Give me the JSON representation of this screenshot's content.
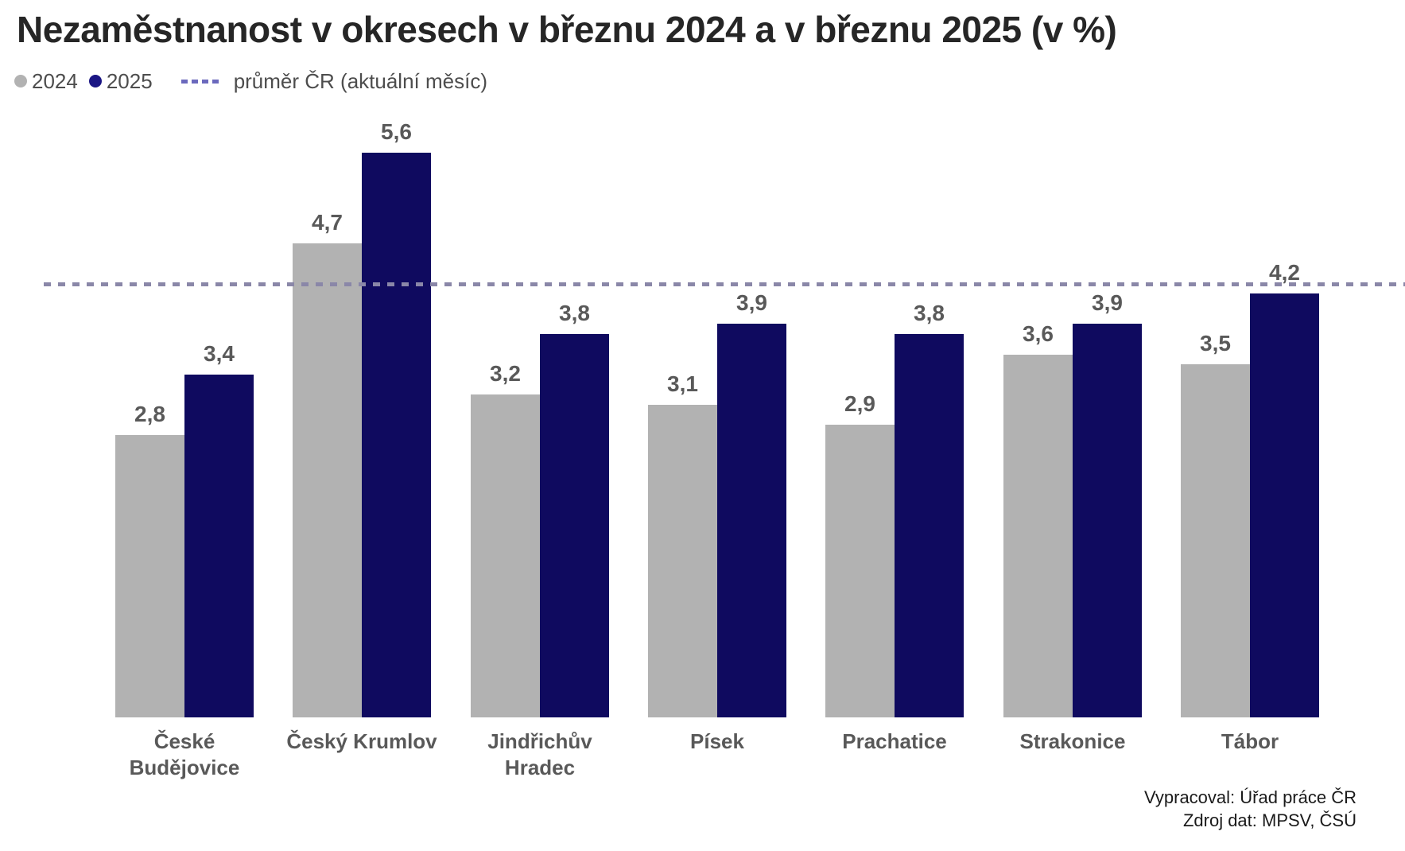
{
  "page": {
    "title": "Nezaměstnanost v okresech v březnu 2024 a v březnu 2025 (v %)",
    "footer": {
      "line1": "Vypracoval: Úřad práce ČR",
      "line2": "Zdroj dat: MPSV, ČSÚ"
    }
  },
  "legend": {
    "items": [
      {
        "label": "2024",
        "swatch": "circle",
        "color": "#b2b2b2"
      },
      {
        "label": "2025",
        "swatch": "circle",
        "color": "#1b1684"
      },
      {
        "label": "průměr ČR (aktuální měsíc)",
        "swatch": "dashed-line",
        "color": "#6b69bd"
      }
    ]
  },
  "chart_data": {
    "type": "bar",
    "title": "Nezaměstnanost v okresech v březnu 2024 a v březnu 2025 (v %)",
    "categories": [
      "České\nBudějovice",
      "Český Krumlov",
      "Jindřichův\nHradec",
      "Písek",
      "Prachatice",
      "Strakonice",
      "Tábor"
    ],
    "series": [
      {
        "name": "2024",
        "color": "#b2b2b2",
        "values": [
          2.8,
          4.7,
          3.2,
          3.1,
          2.9,
          3.6,
          3.5
        ]
      },
      {
        "name": "2025",
        "color": "#0f0a5f",
        "values": [
          3.4,
          5.6,
          3.8,
          3.9,
          3.8,
          3.9,
          4.2
        ]
      }
    ],
    "average_line": {
      "label": "průměr ČR (aktuální měsíc)",
      "value": 4.3,
      "style": "dashed",
      "color": "#8a87a8"
    },
    "xlabel": "",
    "ylabel": "",
    "ylim": [
      0,
      6.2
    ],
    "grid": false,
    "value_labels": "decimal-comma",
    "legend_position": "top-left"
  }
}
